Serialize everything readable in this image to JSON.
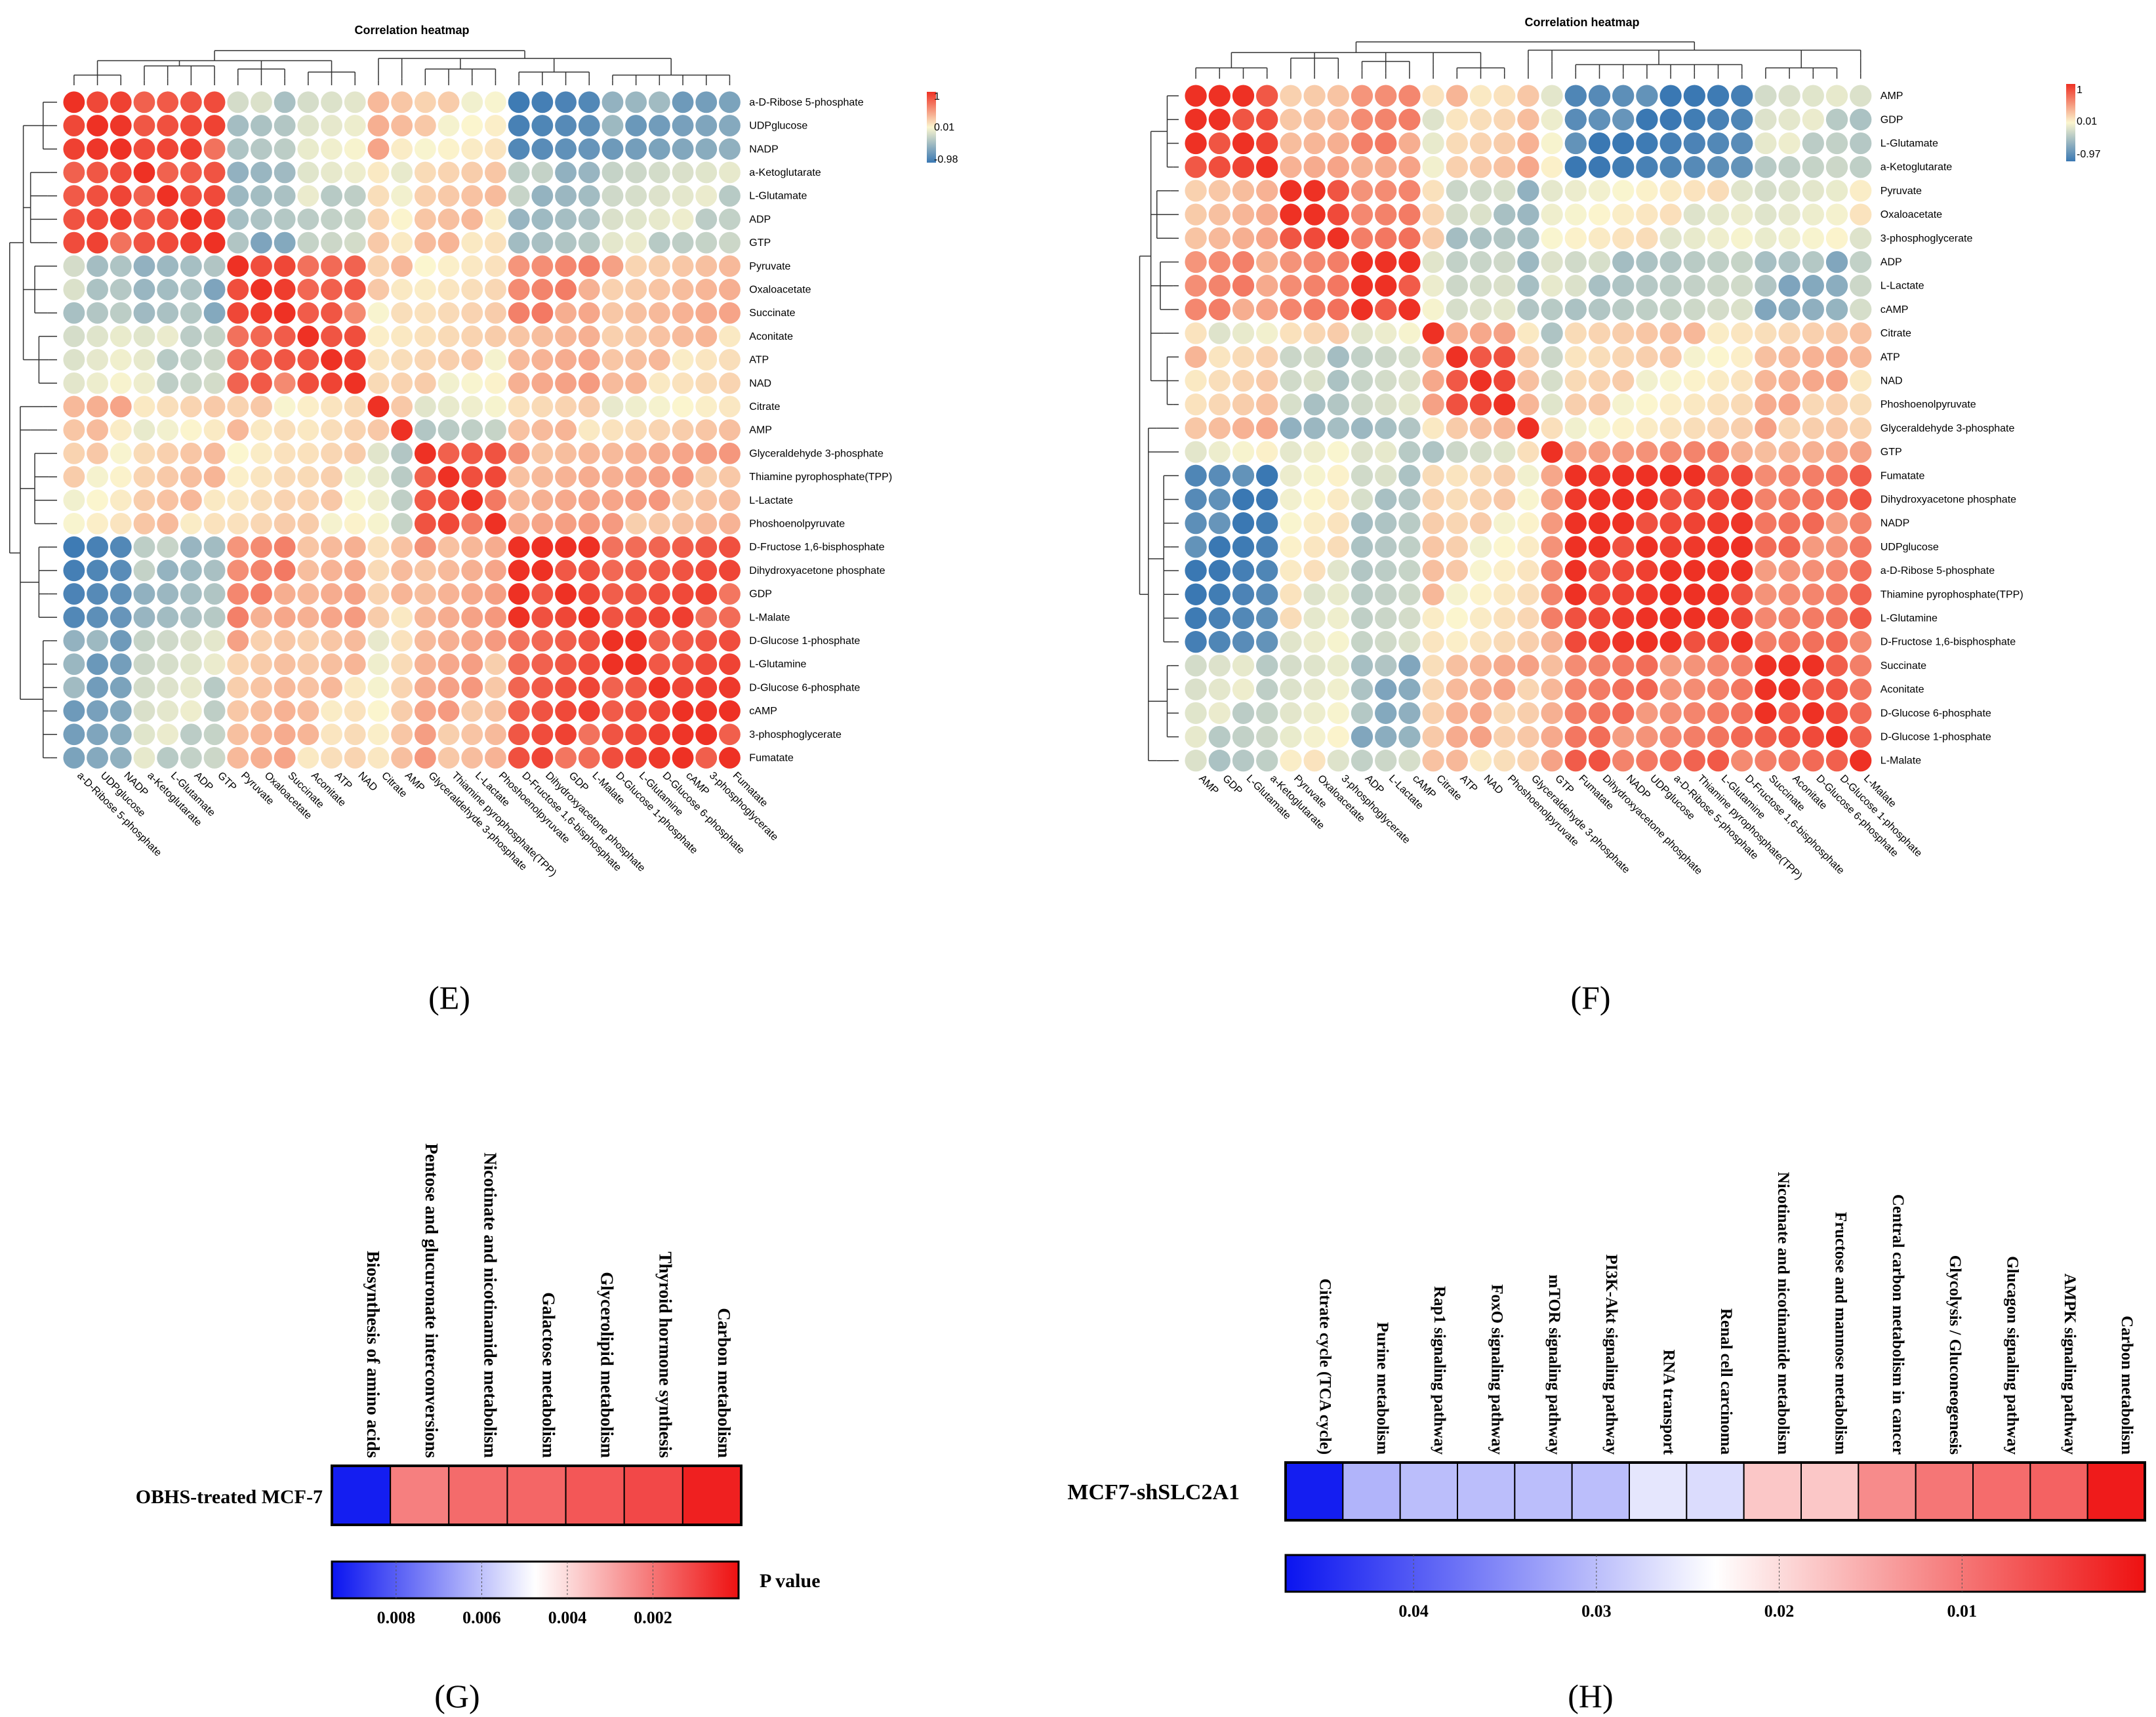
{
  "panel_labels": {
    "E": "(E)",
    "F": "(F)",
    "G": "(G)",
    "H": "(H)"
  },
  "colors": {
    "neg": "#3a78b3",
    "mid": "#fbf6cf",
    "pos": "#ee3124",
    "blue_strong": "#0a14f0",
    "red_strong": "#ee1111"
  },
  "chart_data": [
    {
      "panel": "E",
      "type": "heatmap",
      "title": "Correlation heatmap",
      "labels": [
        "a-D-Ribose 5-phosphate",
        "UDPglucose",
        "NADP",
        "a-Ketoglutarate",
        "L-Glutamate",
        "ADP",
        "GTP",
        "Pyruvate",
        "Oxaloacetate",
        "Succinate",
        "Aconitate",
        "ATP",
        "NAD",
        "Citrate",
        "AMP",
        "Glyceraldehyde 3-phosphate",
        "Thiamine pyrophosphate(TPP)",
        "L-Lactate",
        "Phoshoenolpyruvate",
        "D-Fructose 1,6-bisphosphate",
        "Dihydroxyacetone phosphate",
        "GDP",
        "L-Malate",
        "D-Glucose 1-phosphate",
        "L-Glutamine",
        "D-Glucose 6-phosphate",
        "cAMP",
        "3-phosphoglycerate",
        "Fumatate"
      ],
      "groups": [
        0,
        0,
        0,
        1,
        1,
        1,
        1,
        2,
        2,
        2,
        3,
        3,
        3,
        4,
        5,
        6,
        6,
        6,
        6,
        7,
        7,
        7,
        7,
        8,
        8,
        8,
        8,
        8,
        8
      ],
      "group_corr": [
        [
          1.0,
          0.8,
          -0.3,
          -0.1,
          0.3,
          0.2,
          0.1,
          -0.9,
          -0.6
        ],
        [
          0.8,
          0.9,
          -0.5,
          -0.2,
          0.2,
          0.0,
          0.2,
          -0.4,
          -0.2
        ],
        [
          -0.3,
          -0.5,
          0.95,
          0.7,
          0.1,
          0.2,
          0.15,
          0.5,
          0.3
        ],
        [
          -0.1,
          -0.2,
          0.7,
          0.95,
          0.1,
          0.1,
          0.1,
          0.4,
          0.2
        ],
        [
          0.3,
          0.2,
          0.1,
          0.1,
          1.0,
          0.1,
          0.0,
          0.1,
          0.05
        ],
        [
          0.2,
          0.0,
          0.2,
          0.1,
          0.1,
          1.0,
          -0.3,
          0.2,
          0.2
        ],
        [
          0.1,
          0.2,
          0.15,
          0.1,
          0.0,
          -0.3,
          0.75,
          0.4,
          0.35
        ],
        [
          -0.9,
          -0.4,
          0.5,
          0.4,
          0.1,
          0.2,
          0.4,
          0.95,
          0.8
        ],
        [
          -0.6,
          -0.2,
          0.3,
          0.2,
          0.05,
          0.2,
          0.35,
          0.8,
          0.9
        ]
      ],
      "scale": {
        "max_label": "1",
        "mid_label": "0.01",
        "min_label": "-0.98",
        "max": 1,
        "mid": 0.01,
        "min": -0.98
      }
    },
    {
      "panel": "F",
      "type": "heatmap",
      "title": "Correlation heatmap",
      "labels": [
        "AMP",
        "GDP",
        "L-Glutamate",
        "a-Ketoglutarate",
        "Pyruvate",
        "Oxaloacetate",
        "3-phosphoglycerate",
        "ADP",
        "L-Lactate",
        "cAMP",
        "Citrate",
        "ATP",
        "NAD",
        "Phoshoenolpyruvate",
        "Glyceraldehyde 3-phosphate",
        "GTP",
        "Fumatate",
        "Dihydroxyacetone phosphate",
        "NADP",
        "UDPglucose",
        "a-D-Ribose 5-phosphate",
        "Thiamine pyrophosphate(TPP)",
        "L-Glutamine",
        "D-Fructose 1,6-bisphosphate",
        "Succinate",
        "Aconitate",
        "D-Glucose 6-phosphate",
        "D-Glucose 1-phosphate",
        "L-Malate"
      ],
      "groups": [
        0,
        0,
        0,
        0,
        1,
        1,
        1,
        2,
        2,
        2,
        3,
        4,
        4,
        4,
        5,
        6,
        7,
        7,
        7,
        7,
        7,
        7,
        7,
        7,
        8,
        8,
        8,
        8,
        9
      ],
      "group_corr": [
        [
          0.95,
          0.3,
          0.5,
          0.0,
          0.2,
          0.3,
          -0.1,
          -0.9,
          -0.2,
          -0.3
        ],
        [
          0.3,
          0.95,
          0.6,
          0.1,
          -0.3,
          -0.4,
          0.0,
          0.0,
          -0.1,
          0.0
        ],
        [
          0.5,
          0.6,
          0.9,
          0.0,
          -0.2,
          -0.5,
          -0.2,
          -0.3,
          -0.5,
          -0.2
        ],
        [
          0.0,
          0.1,
          0.0,
          1.0,
          0.3,
          0.2,
          -0.3,
          0.2,
          0.2,
          0.2
        ],
        [
          0.2,
          -0.3,
          -0.2,
          0.3,
          0.95,
          0.3,
          -0.2,
          0.1,
          0.3,
          0.2
        ],
        [
          0.3,
          -0.4,
          -0.5,
          0.2,
          0.3,
          1.0,
          0.0,
          0.1,
          0.3,
          0.2
        ],
        [
          -0.1,
          0.0,
          -0.2,
          -0.3,
          -0.2,
          0.0,
          1.0,
          0.5,
          0.4,
          0.4
        ],
        [
          -0.9,
          0.0,
          -0.3,
          0.2,
          0.1,
          0.1,
          0.5,
          0.97,
          0.6,
          0.7
        ],
        [
          -0.2,
          -0.1,
          -0.5,
          0.2,
          0.3,
          0.3,
          0.4,
          0.6,
          0.9,
          0.7
        ],
        [
          -0.3,
          0.0,
          -0.2,
          0.2,
          0.2,
          0.2,
          0.4,
          0.7,
          0.7,
          1.0
        ]
      ],
      "scale": {
        "max_label": "1",
        "mid_label": "0.01",
        "min_label": "-0.97",
        "max": 1,
        "mid": 0.01,
        "min": -0.97
      }
    },
    {
      "panel": "G",
      "type": "heatmap",
      "row_label": "OBHS-treated MCF-7",
      "categories": [
        "Biosynthesis of amino acids",
        "Pentose and glucuronate interconversions",
        "Nicotinate and nicotinamide metabolism",
        "Galactose metabolism",
        "Glycerolipid metabolism",
        "Thyroid hormone synthesis",
        "Carbon metabolism"
      ],
      "values": [
        0.0093,
        0.0022,
        0.0018,
        0.0017,
        0.0014,
        0.0011,
        0.0003
      ],
      "colorbar": {
        "min": 0.0,
        "max": 0.0095,
        "ticks": [
          0.008,
          0.006,
          0.004,
          0.002
        ],
        "tick_labels": [
          "0.008",
          "0.006",
          "0.004",
          "0.002"
        ],
        "title": "P value"
      }
    },
    {
      "panel": "H",
      "type": "heatmap",
      "row_label": "MCF7-shSLC2A1",
      "categories": [
        "Citrate cycle (TCA cycle)",
        "Purine metabolism",
        "Rap1 signaling pathway",
        "FoxO signaling pathway",
        "mTOR signaling pathway",
        "PI3K-Akt signaling pathway",
        "RNA transport",
        "Renal cell carcinoma",
        "Nicotinate and nicotinamide metabolism",
        "Fructose and mannose metabolism",
        "Central carbon metabolism in cancer",
        "Glycolysis / Gluconeogenesis",
        "Glucagon signaling pathway",
        "AMPK signaling pathway",
        "Carbon metabolism"
      ],
      "values": [
        0.046,
        0.031,
        0.03,
        0.03,
        0.03,
        0.03,
        0.026,
        0.027,
        0.018,
        0.018,
        0.012,
        0.01,
        0.009,
        0.008,
        0.001
      ],
      "colorbar": {
        "min": 0.0,
        "max": 0.047,
        "ticks": [
          0.04,
          0.03,
          0.02,
          0.01
        ],
        "tick_labels": [
          "0.04",
          "0.03",
          "0.02",
          "0.01"
        ],
        "title": ""
      }
    }
  ]
}
